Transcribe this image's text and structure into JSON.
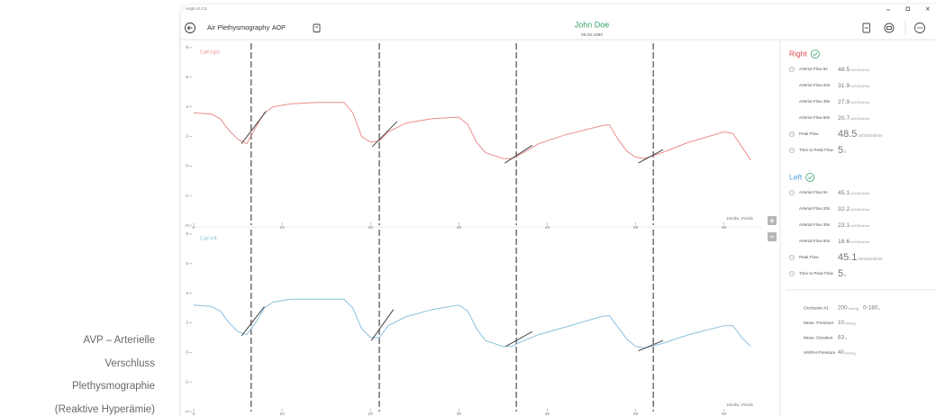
{
  "caption": [
    "AVP – Arterielle",
    "Verschluss",
    "Plethysmographie",
    "(Reaktive Hyperämie)"
  ],
  "window": {
    "version": "Angil v2.2.5"
  },
  "toolbar": {
    "title": "Air Plethysmography",
    "mode": "AOP",
    "patient": "John Doe",
    "birthdate": "05.06.1980"
  },
  "chart_data": [
    {
      "type": "line",
      "title": "Calf right",
      "xlabel": "10s/div, 2%/div",
      "x": [
        0,
        2,
        3,
        4,
        5,
        6,
        7,
        8,
        9,
        11,
        14,
        17,
        18,
        19,
        20,
        21,
        22,
        24,
        27,
        30,
        31,
        32,
        33,
        35,
        36,
        37,
        39,
        42,
        46,
        47,
        48,
        49,
        50,
        51,
        53,
        56,
        60,
        61,
        62,
        63
      ],
      "series": [
        {
          "color": "#e98d8d",
          "values": [
            3.6,
            3.5,
            3.2,
            2.4,
            1.8,
            1.5,
            2.6,
            3.6,
            4.0,
            4.2,
            4.3,
            4.3,
            3.6,
            2.0,
            1.6,
            1.7,
            2.3,
            2.9,
            3.2,
            3.3,
            2.8,
            1.6,
            0.9,
            0.5,
            0.5,
            0.8,
            1.5,
            2.1,
            2.7,
            2.8,
            1.8,
            1.0,
            0.6,
            0.5,
            0.9,
            1.6,
            2.3,
            2.2,
            1.3,
            0.4
          ]
        }
      ],
      "xlim": [
        0,
        64
      ],
      "ylim": [
        -4,
        8.3
      ],
      "xticks": [
        0,
        10,
        20,
        30,
        40,
        50,
        60
      ],
      "yticks": [
        -4,
        -2,
        0,
        2,
        4,
        6,
        8
      ],
      "vlines": [
        6.5,
        21,
        36.5,
        52
      ],
      "slopes": [
        {
          "x": [
            5.4,
            8.2
          ],
          "y": [
            1.5,
            3.7
          ]
        },
        {
          "x": [
            20.2,
            23
          ],
          "y": [
            1.3,
            3.0
          ]
        },
        {
          "x": [
            35.2,
            38.3
          ],
          "y": [
            0.2,
            1.4
          ]
        },
        {
          "x": [
            50.3,
            53.1
          ],
          "y": [
            0.2,
            1.1
          ]
        }
      ]
    },
    {
      "type": "line",
      "title": "Calf left",
      "xlabel": "10s/div, 2%/div",
      "x": [
        0,
        2,
        3,
        4,
        5,
        6,
        7,
        8,
        9,
        11,
        14,
        17,
        18,
        19,
        20,
        21,
        22,
        24,
        27,
        30,
        31,
        32,
        33,
        35,
        36,
        37,
        39,
        42,
        46,
        47,
        48,
        49,
        50,
        51,
        53,
        56,
        60,
        61,
        62,
        63
      ],
      "series": [
        {
          "color": "#8cc0de",
          "values": [
            3.2,
            3.1,
            2.8,
            2.0,
            1.4,
            1.2,
            2.0,
            3.0,
            3.4,
            3.6,
            3.6,
            3.6,
            3.0,
            1.6,
            1.0,
            1.0,
            1.8,
            2.4,
            2.9,
            3.2,
            2.8,
            1.6,
            0.8,
            0.4,
            0.4,
            0.7,
            1.2,
            1.7,
            2.4,
            2.5,
            1.7,
            0.9,
            0.4,
            0.3,
            0.6,
            1.2,
            1.8,
            1.8,
            1.0,
            0.4
          ]
        }
      ],
      "xlim": [
        0,
        64
      ],
      "ylim": [
        -4,
        8.3
      ],
      "xticks": [
        0,
        10,
        20,
        30,
        40,
        50,
        60
      ],
      "yticks": [
        -4,
        -2,
        0,
        2,
        4,
        6,
        8
      ],
      "vlines": [
        6.5,
        21,
        36.5,
        52
      ],
      "slopes": [
        {
          "x": [
            5.4,
            8
          ],
          "y": [
            1.1,
            3.1
          ]
        },
        {
          "x": [
            20.1,
            22.6
          ],
          "y": [
            0.8,
            2.9
          ]
        },
        {
          "x": [
            35.3,
            38.3
          ],
          "y": [
            0.4,
            1.4
          ]
        },
        {
          "x": [
            50.3,
            53.1
          ],
          "y": [
            0.1,
            0.8
          ]
        }
      ]
    }
  ],
  "panel": {
    "sides": [
      {
        "title": "Right",
        "color": "#e0474c",
        "rows": [
          {
            "label": "Arterial Flow 5s",
            "value": "48.5",
            "unit": "ml/100ml/min",
            "icon": true
          },
          {
            "label": "Arterial Flow 20s",
            "value": "31.9",
            "unit": "ml/100ml/min"
          },
          {
            "label": "Arterial Flow 35s",
            "value": "27.9",
            "unit": "ml/100ml/min"
          },
          {
            "label": "Arterial Flow 50s",
            "value": "20.7",
            "unit": "ml/100ml/min"
          },
          {
            "label": "Peak Flow",
            "value": "48.5",
            "unit": "ml/100ml/min",
            "icon": true,
            "large": true
          },
          {
            "label": "Time to Peak Flow",
            "value": "5",
            "unit": "s",
            "icon": true,
            "large": true
          }
        ]
      },
      {
        "title": "Left",
        "color": "#4a9fd4",
        "rows": [
          {
            "label": "Arterial Flow 5s",
            "value": "45.1",
            "unit": "ml/100ml/min",
            "icon": true
          },
          {
            "label": "Arterial Flow 20s",
            "value": "32.2",
            "unit": "ml/100ml/min"
          },
          {
            "label": "Arterial Flow 35s",
            "value": "23.1",
            "unit": "ml/100ml/min"
          },
          {
            "label": "Arterial Flow 50s",
            "value": "18.6",
            "unit": "ml/100ml/min"
          },
          {
            "label": "Peak Flow",
            "value": "45.1",
            "unit": "ml/100ml/min",
            "icon": true,
            "large": true
          },
          {
            "label": "Time to Peak Flow",
            "value": "5",
            "unit": "s",
            "icon": true,
            "large": true
          }
        ]
      }
    ],
    "settings": [
      {
        "label": "Occlusion #1",
        "value": "200",
        "unit": "mmHg",
        "extra": "0-180",
        "extra_unit": "s"
      },
      {
        "label": "Meas. Pressure",
        "value": "10",
        "unit": "mmHg"
      },
      {
        "label": "Meas. Duration",
        "value": "63",
        "unit": "s"
      },
      {
        "label": "AR/RH Pressure",
        "value": "40",
        "unit": "mmHg"
      }
    ]
  }
}
